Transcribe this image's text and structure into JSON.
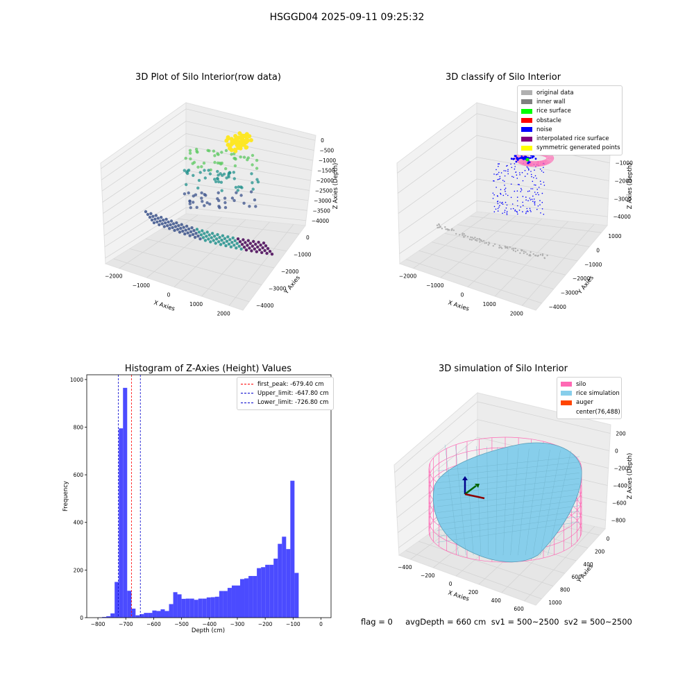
{
  "suptitle": "HSGGD04 2025-09-11 09:25:32",
  "footer": "flag = 0     avgDepth = 660 cm  sv1 = 500~2500  sv2 = 500~2500",
  "chart_data": [
    {
      "type": "scatter",
      "projection": "3d",
      "title": "3D Plot of Silo Interior(row data)",
      "xlabel": "X Axies",
      "ylabel": "Y Axies",
      "zlabel": "Z Axies (Depth)",
      "xticks": [
        "−2000",
        "−1000",
        "0",
        "1000",
        "2000"
      ],
      "yticks": [
        "0",
        "−1000",
        "−2000",
        "−3000",
        "−4000"
      ],
      "zticks": [
        "0",
        "−500",
        "−1000",
        "−1500",
        "−2000",
        "−2500",
        "−3000",
        "−3500",
        "−4000"
      ],
      "colormap": "viridis (by depth)",
      "grid": true
    },
    {
      "type": "scatter",
      "projection": "3d",
      "title": "3D classify of Silo Interior",
      "xlabel": "X Axies",
      "ylabel": "Y Axies",
      "zlabel": "Z Axies (Depth)",
      "xticks": [
        "−2000",
        "−1000",
        "0",
        "1000",
        "2000"
      ],
      "yticks": [
        "1000",
        "0",
        "−1000",
        "−2000",
        "−3000",
        "−4000"
      ],
      "zticks": [
        "0",
        "−1000",
        "−2000",
        "−3000",
        "−4000"
      ],
      "legend_position": "top-right",
      "legend": [
        {
          "label": "original data",
          "color": "#b0b0b0"
        },
        {
          "label": "inner wall",
          "color": "#808080"
        },
        {
          "label": "rice surface",
          "color": "#00ff00"
        },
        {
          "label": "obstacle",
          "color": "#ff0000"
        },
        {
          "label": "noise",
          "color": "#0000ff"
        },
        {
          "label": "interpolated rice surface",
          "color": "#800080"
        },
        {
          "label": "symmetric generated points",
          "color": "#ffff00"
        }
      ],
      "grid": true
    },
    {
      "type": "bar",
      "title": "Histogram of Z-Axies (Height) Values",
      "xlabel": "Depth (cm)",
      "ylabel": "Frequency",
      "xlim": [
        -840,
        36
      ],
      "ylim": [
        0,
        1020
      ],
      "xticks": [
        "−800",
        "−700",
        "−600",
        "−500",
        "−400",
        "−300",
        "−200",
        "−100",
        "0"
      ],
      "yticks": [
        "0",
        "200",
        "400",
        "600",
        "800",
        "1000"
      ],
      "bar_color": "#4b4bff",
      "bin_start": -800,
      "bin_width": 15,
      "values": [
        1,
        3,
        6,
        18,
        150,
        795,
        965,
        113,
        38,
        10,
        15,
        20,
        20,
        30,
        28,
        35,
        28,
        57,
        107,
        98,
        79,
        80,
        80,
        75,
        80,
        80,
        85,
        86,
        88,
        112,
        112,
        125,
        135,
        135,
        162,
        165,
        175,
        175,
        208,
        212,
        222,
        222,
        248,
        310,
        340,
        288,
        575,
        188
      ],
      "vlines": [
        {
          "label": "first_peak: -679.40 cm",
          "x": -679.4,
          "color": "#ff0000"
        },
        {
          "label": "Upper_limit: -647.80 cm",
          "x": -647.8,
          "color": "#0000cc"
        },
        {
          "label": "Lower_limit: -726.80 cm",
          "x": -726.8,
          "color": "#0000cc"
        }
      ],
      "legend_position": "top-right",
      "grid": false
    },
    {
      "type": "surface",
      "projection": "3d",
      "title": "3D simulation of Silo Interior",
      "xlabel": "X Axies",
      "ylabel": "Y Axies",
      "zlabel": "Z Axies (Depth)",
      "xticks": [
        "−400",
        "−200",
        "0",
        "200",
        "400",
        "600"
      ],
      "yticks": [
        "0",
        "200",
        "400",
        "600",
        "800",
        "1000"
      ],
      "zticks": [
        "200",
        "0",
        "−200",
        "−400",
        "−600",
        "−800"
      ],
      "legend_position": "top-right",
      "legend": [
        {
          "label": "silo",
          "color": "#ff69b4"
        },
        {
          "label": "rice simulation",
          "color": "#87ceeb"
        },
        {
          "label": "auger",
          "color": "#ff4500"
        },
        {
          "label": "center(76,488)",
          "color": ""
        }
      ],
      "grid": true
    }
  ]
}
